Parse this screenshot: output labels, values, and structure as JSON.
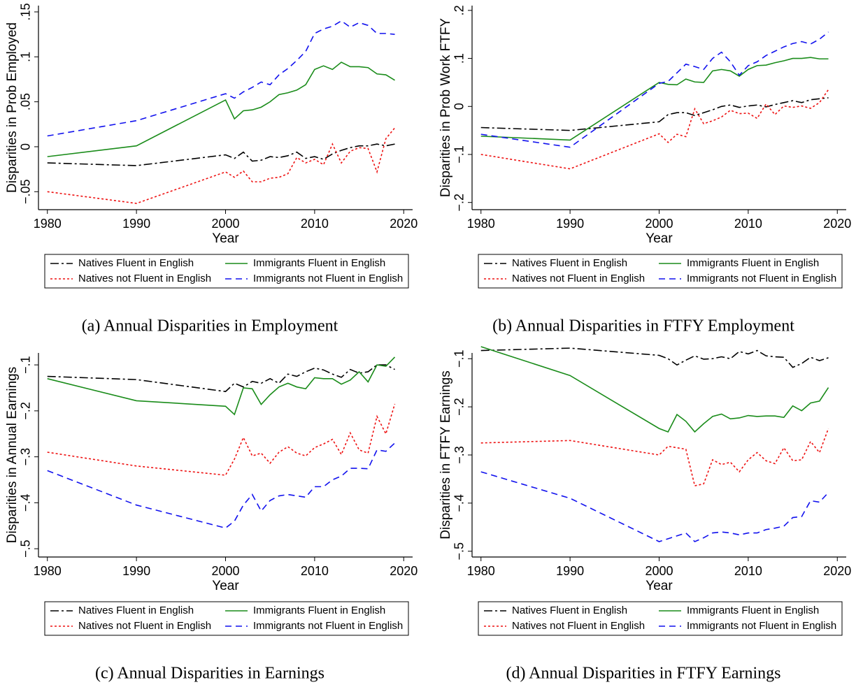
{
  "chart_data": [
    {
      "type": "line",
      "caption": "(a) Annual Disparities in Employment",
      "x_label": "Year",
      "y_label": "Disparities in Prob Employed",
      "x": [
        1980,
        1990,
        2000,
        2001,
        2002,
        2003,
        2004,
        2005,
        2006,
        2007,
        2008,
        2009,
        2010,
        2011,
        2012,
        2013,
        2014,
        2015,
        2016,
        2017,
        2018,
        2019
      ],
      "xlim": [
        1979,
        2021
      ],
      "xticks": [
        1980,
        1990,
        2000,
        2010,
        2020
      ],
      "ylim": [
        -0.07,
        0.157
      ],
      "yticks": [
        {
          "value": -0.05,
          "label": "−.05"
        },
        0,
        {
          "value": 0.05,
          "label": ".05"
        },
        {
          "value": 0.1,
          "label": ".1"
        },
        {
          "value": 0.15,
          "label": ".15"
        }
      ],
      "series": [
        {
          "name": "Natives Fluent in English",
          "color": "#000000",
          "linestyle": "dashdot",
          "values": [
            -0.018,
            -0.021,
            -0.009,
            -0.013,
            -0.006,
            -0.016,
            -0.015,
            -0.011,
            -0.012,
            -0.01,
            -0.006,
            -0.013,
            -0.011,
            -0.014,
            -0.008,
            -0.004,
            -0.001,
            0.001,
            0.001,
            0.003,
            0.001,
            0.003
          ]
        },
        {
          "name": "Immigrants Fluent in English",
          "color": "#1a8c1a",
          "linestyle": "solid",
          "values": [
            -0.011,
            0.001,
            0.052,
            0.031,
            0.04,
            0.041,
            0.044,
            0.05,
            0.058,
            0.06,
            0.063,
            0.069,
            0.086,
            0.09,
            0.086,
            0.094,
            0.089,
            0.089,
            0.088,
            0.081,
            0.08,
            0.074
          ]
        },
        {
          "name": "Natives not Fluent in English",
          "color": "#ee1111",
          "linestyle": "dotted",
          "values": [
            -0.05,
            -0.063,
            -0.028,
            -0.034,
            -0.027,
            -0.039,
            -0.039,
            -0.035,
            -0.034,
            -0.03,
            -0.012,
            -0.018,
            -0.014,
            -0.02,
            0.003,
            -0.018,
            -0.005,
            -0.001,
            -0.002,
            -0.028,
            0.009,
            0.021
          ]
        },
        {
          "name": "Immigrants not Fluent in English",
          "color": "#1111ee",
          "linestyle": "dashed",
          "values": [
            0.012,
            0.029,
            0.059,
            0.054,
            0.061,
            0.066,
            0.072,
            0.069,
            0.08,
            0.087,
            0.096,
            0.106,
            0.126,
            0.131,
            0.134,
            0.14,
            0.133,
            0.138,
            0.135,
            0.126,
            0.126,
            0.125
          ]
        }
      ]
    },
    {
      "type": "line",
      "caption": "(b) Annual Disparities in FTFY Employment",
      "x_label": "Year",
      "y_label": "Disparities in Prob Work FTFY",
      "x": [
        1980,
        1990,
        2000,
        2001,
        2002,
        2003,
        2004,
        2005,
        2006,
        2007,
        2008,
        2009,
        2010,
        2011,
        2012,
        2013,
        2014,
        2015,
        2016,
        2017,
        2018,
        2019
      ],
      "xlim": [
        1979,
        2021
      ],
      "xticks": [
        1980,
        1990,
        2000,
        2010,
        2020
      ],
      "ylim": [
        -0.215,
        0.21
      ],
      "yticks": [
        {
          "value": -0.2,
          "label": "−.2"
        },
        {
          "value": -0.1,
          "label": "−.1"
        },
        0,
        {
          "value": 0.1,
          "label": ".1"
        },
        {
          "value": 0.2,
          "label": ".2"
        }
      ],
      "series": [
        {
          "name": "Natives Fluent in English",
          "color": "#000000",
          "linestyle": "dashdot",
          "values": [
            -0.044,
            -0.05,
            -0.032,
            -0.017,
            -0.013,
            -0.013,
            -0.019,
            -0.013,
            -0.007,
            0,
            0.003,
            -0.002,
            0.001,
            0.003,
            -0.001,
            0.004,
            0.008,
            0.012,
            0.008,
            0.014,
            0.016,
            0.018
          ]
        },
        {
          "name": "Immigrants Fluent in English",
          "color": "#1a8c1a",
          "linestyle": "solid",
          "values": [
            -0.062,
            -0.07,
            0.05,
            0.046,
            0.045,
            0.057,
            0.051,
            0.05,
            0.074,
            0.077,
            0.074,
            0.063,
            0.077,
            0.085,
            0.086,
            0.091,
            0.095,
            0.1,
            0.1,
            0.102,
            0.099,
            0.099
          ]
        },
        {
          "name": "Natives not Fluent in English",
          "color": "#ee1111",
          "linestyle": "dotted",
          "values": [
            -0.1,
            -0.13,
            -0.057,
            -0.075,
            -0.058,
            -0.063,
            -0.005,
            -0.036,
            -0.03,
            -0.022,
            -0.008,
            -0.015,
            -0.014,
            -0.025,
            0.005,
            -0.017,
            0.001,
            -0.002,
            0.001,
            -0.004,
            0.008,
            0.035
          ]
        },
        {
          "name": "Immigrants not Fluent in English",
          "color": "#1111ee",
          "linestyle": "dashed",
          "values": [
            -0.058,
            -0.085,
            0.048,
            0.052,
            0.07,
            0.088,
            0.083,
            0.077,
            0.1,
            0.113,
            0.093,
            0.065,
            0.085,
            0.093,
            0.106,
            0.115,
            0.124,
            0.131,
            0.135,
            0.13,
            0.14,
            0.155
          ]
        }
      ]
    },
    {
      "type": "line",
      "caption": "(c) Annual Disparities in Earnings",
      "x_label": "Year",
      "y_label": "Disparities in Annual Earnings",
      "x": [
        1980,
        1990,
        2000,
        2001,
        2002,
        2003,
        2004,
        2005,
        2006,
        2007,
        2008,
        2009,
        2010,
        2011,
        2012,
        2013,
        2014,
        2015,
        2016,
        2017,
        2018,
        2019
      ],
      "xlim": [
        1979,
        2021
      ],
      "xticks": [
        1980,
        1990,
        2000,
        2010,
        2020
      ],
      "ylim": [
        -0.518,
        -0.074
      ],
      "yticks": [
        {
          "value": -0.5,
          "label": "−.5"
        },
        {
          "value": -0.4,
          "label": "−.4"
        },
        {
          "value": -0.3,
          "label": "−.3"
        },
        {
          "value": -0.2,
          "label": "−.2"
        },
        {
          "value": -0.1,
          "label": "−.1"
        }
      ],
      "series": [
        {
          "name": "Natives Fluent in English",
          "color": "#000000",
          "linestyle": "dashdot",
          "values": [
            -0.125,
            -0.132,
            -0.158,
            -0.14,
            -0.148,
            -0.136,
            -0.14,
            -0.13,
            -0.14,
            -0.12,
            -0.125,
            -0.115,
            -0.107,
            -0.111,
            -0.12,
            -0.127,
            -0.11,
            -0.118,
            -0.115,
            -0.1,
            -0.1,
            -0.11
          ]
        },
        {
          "name": "Immigrants Fluent in English",
          "color": "#1a8c1a",
          "linestyle": "solid",
          "values": [
            -0.13,
            -0.178,
            -0.19,
            -0.208,
            -0.15,
            -0.152,
            -0.186,
            -0.165,
            -0.148,
            -0.14,
            -0.148,
            -0.152,
            -0.128,
            -0.13,
            -0.13,
            -0.142,
            -0.133,
            -0.115,
            -0.137,
            -0.1,
            -0.103,
            -0.083
          ]
        },
        {
          "name": "Natives not Fluent in English",
          "color": "#ee1111",
          "linestyle": "dotted",
          "values": [
            -0.29,
            -0.32,
            -0.34,
            -0.305,
            -0.258,
            -0.298,
            -0.292,
            -0.314,
            -0.29,
            -0.278,
            -0.292,
            -0.298,
            -0.28,
            -0.272,
            -0.262,
            -0.295,
            -0.248,
            -0.285,
            -0.292,
            -0.212,
            -0.25,
            -0.185
          ]
        },
        {
          "name": "Immigrants not Fluent in English",
          "color": "#1111ee",
          "linestyle": "dashed",
          "values": [
            -0.33,
            -0.405,
            -0.455,
            -0.44,
            -0.405,
            -0.382,
            -0.418,
            -0.395,
            -0.385,
            -0.382,
            -0.385,
            -0.388,
            -0.365,
            -0.365,
            -0.35,
            -0.342,
            -0.325,
            -0.325,
            -0.326,
            -0.285,
            -0.288,
            -0.27
          ]
        }
      ]
    },
    {
      "type": "line",
      "caption": "(d) Annual Disparities in FTFY Earnings",
      "x_label": "Year",
      "y_label": "Disparities in FTFY Earnings",
      "x": [
        1980,
        1990,
        2000,
        2001,
        2002,
        2003,
        2004,
        2005,
        2006,
        2007,
        2008,
        2009,
        2010,
        2011,
        2012,
        2013,
        2014,
        2015,
        2016,
        2017,
        2018,
        2019
      ],
      "xlim": [
        1979,
        2021
      ],
      "xticks": [
        1980,
        1990,
        2000,
        2010,
        2020
      ],
      "ylim": [
        -0.512,
        -0.088
      ],
      "yticks": [
        {
          "value": -0.5,
          "label": "−.5"
        },
        {
          "value": -0.4,
          "label": "−.4"
        },
        {
          "value": -0.3,
          "label": "−.3"
        },
        {
          "value": -0.2,
          "label": "−.2"
        },
        {
          "value": -0.1,
          "label": "−.1"
        }
      ],
      "series": [
        {
          "name": "Natives Fluent in English",
          "color": "#000000",
          "linestyle": "dashdot",
          "values": [
            -0.083,
            -0.078,
            -0.093,
            -0.1,
            -0.113,
            -0.103,
            -0.094,
            -0.101,
            -0.1,
            -0.096,
            -0.1,
            -0.085,
            -0.09,
            -0.083,
            -0.094,
            -0.096,
            -0.097,
            -0.118,
            -0.11,
            -0.097,
            -0.104,
            -0.098
          ]
        },
        {
          "name": "Immigrants Fluent in English",
          "color": "#1a8c1a",
          "linestyle": "solid",
          "values": [
            -0.075,
            -0.135,
            -0.245,
            -0.252,
            -0.216,
            -0.23,
            -0.252,
            -0.235,
            -0.22,
            -0.215,
            -0.225,
            -0.223,
            -0.218,
            -0.22,
            -0.219,
            -0.219,
            -0.222,
            -0.198,
            -0.208,
            -0.192,
            -0.188,
            -0.16
          ]
        },
        {
          "name": "Natives not Fluent in English",
          "color": "#ee1111",
          "linestyle": "dotted",
          "values": [
            -0.275,
            -0.27,
            -0.3,
            -0.282,
            -0.285,
            -0.288,
            -0.364,
            -0.36,
            -0.31,
            -0.32,
            -0.315,
            -0.335,
            -0.31,
            -0.295,
            -0.312,
            -0.318,
            -0.285,
            -0.312,
            -0.31,
            -0.272,
            -0.295,
            -0.245
          ]
        },
        {
          "name": "Immigrants not Fluent in English",
          "color": "#1111ee",
          "linestyle": "dashed",
          "values": [
            -0.335,
            -0.39,
            -0.48,
            -0.474,
            -0.468,
            -0.462,
            -0.48,
            -0.472,
            -0.462,
            -0.46,
            -0.462,
            -0.466,
            -0.462,
            -0.462,
            -0.455,
            -0.452,
            -0.448,
            -0.43,
            -0.428,
            -0.395,
            -0.398,
            -0.378
          ]
        }
      ]
    }
  ]
}
